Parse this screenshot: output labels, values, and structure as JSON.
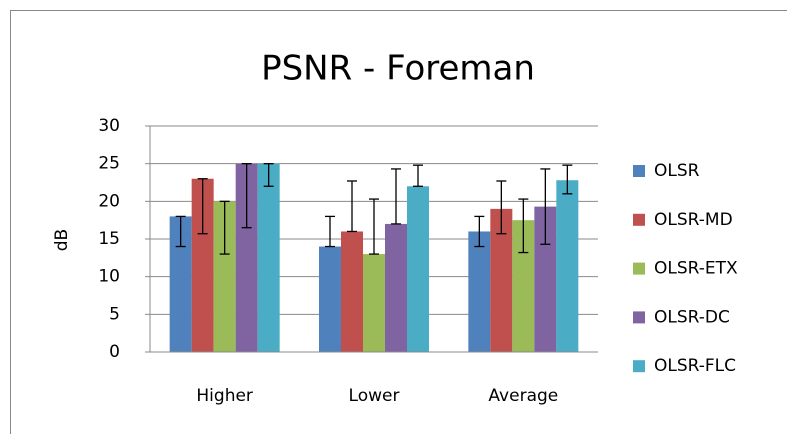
{
  "chart_data": {
    "type": "bar",
    "title": "PSNR - Foreman",
    "y_label": "dB",
    "categories": [
      "Higher",
      "Lower",
      "Average"
    ],
    "series": [
      {
        "name": "OLSR",
        "color": "#4f81bd",
        "values": [
          18,
          14,
          16
        ],
        "error_minus": [
          4,
          0,
          2
        ],
        "error_plus": [
          0,
          4,
          2
        ]
      },
      {
        "name": "OLSR-MD",
        "color": "#c0504d",
        "values": [
          23,
          16,
          19
        ],
        "error_minus": [
          7.3,
          0,
          3.3
        ],
        "error_plus": [
          0,
          6.7,
          3.7
        ]
      },
      {
        "name": "OLSR-ETX",
        "color": "#9bbb59",
        "values": [
          20,
          13,
          17.5
        ],
        "error_minus": [
          7,
          0,
          4.3
        ],
        "error_plus": [
          0,
          7.3,
          2.8
        ]
      },
      {
        "name": "OLSR-DC",
        "color": "#8064a2",
        "values": [
          25,
          17,
          19.3
        ],
        "error_minus": [
          8.5,
          0,
          5
        ],
        "error_plus": [
          0,
          7.3,
          5
        ]
      },
      {
        "name": "OLSR-FLC",
        "color": "#4bacc6",
        "values": [
          25,
          22,
          22.8
        ],
        "error_minus": [
          3,
          0,
          1.8
        ],
        "error_plus": [
          0,
          2.8,
          2
        ]
      }
    ],
    "ylim": [
      0,
      30
    ],
    "yticks": [
      0,
      5,
      10,
      15,
      20,
      25,
      30
    ],
    "grid": true,
    "legend": "right"
  }
}
